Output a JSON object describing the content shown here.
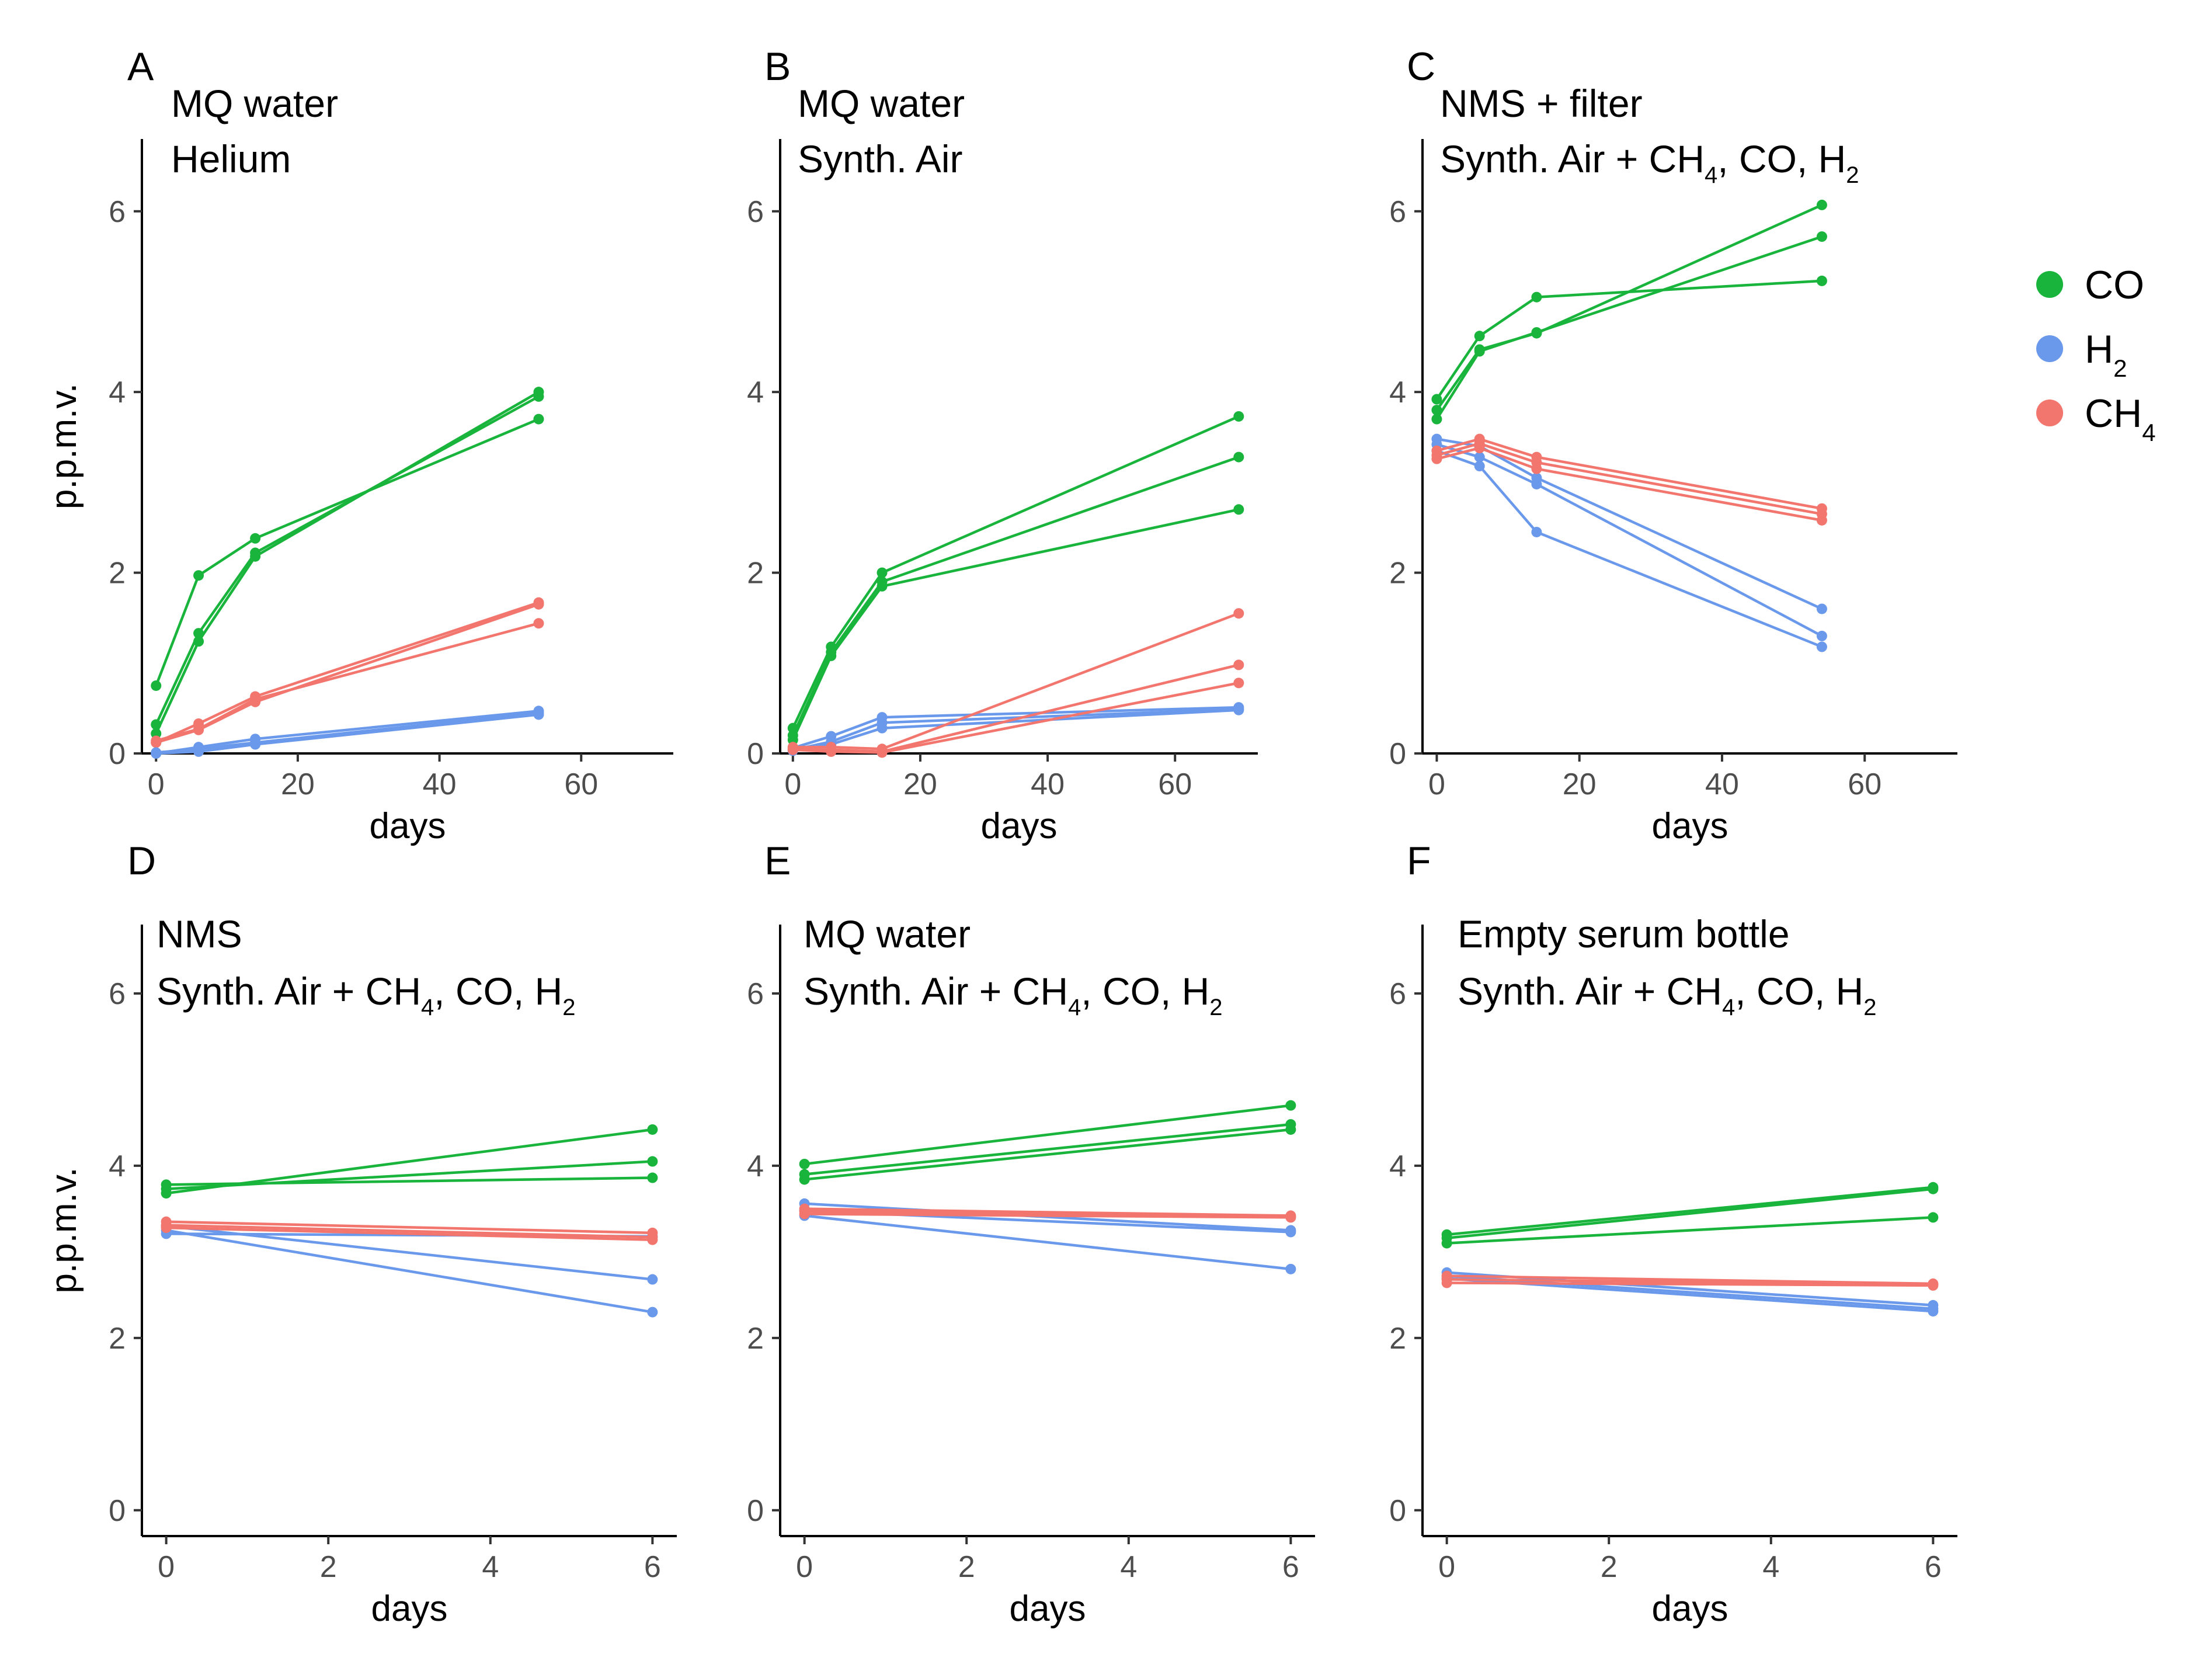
{
  "legend": {
    "items": [
      {
        "key": "CO",
        "label": "CO",
        "sub": "",
        "color": "#19b43c"
      },
      {
        "key": "H2",
        "label": "H",
        "sub": "2",
        "color": "#6a99ec"
      },
      {
        "key": "CH4",
        "label": "CH",
        "sub": "4",
        "color": "#f2756e"
      }
    ]
  },
  "chart_data": [
    {
      "type": "line",
      "panel": "A",
      "title_lines": [
        [
          {
            "t": "MQ water"
          }
        ],
        [
          {
            "t": "Helium"
          }
        ]
      ],
      "xlabel": "days",
      "ylabel": "p.p.m.v.",
      "xlim": [
        -2,
        73
      ],
      "ylim": [
        0,
        6.8
      ],
      "xticks": [
        0,
        20,
        40,
        60
      ],
      "yticks": [
        0,
        2,
        4,
        6
      ],
      "x": [
        0,
        6,
        14,
        54
      ],
      "series": [
        {
          "gas": "CO",
          "name": "CO rep 1",
          "values": [
            0.75,
            1.97,
            2.38,
            3.7
          ]
        },
        {
          "gas": "CO",
          "name": "CO rep 2",
          "values": [
            0.32,
            1.33,
            2.22,
            3.95
          ]
        },
        {
          "gas": "CO",
          "name": "CO rep 3",
          "values": [
            0.22,
            1.24,
            2.18,
            4.0
          ]
        },
        {
          "gas": "CH4",
          "name": "CH4 rep 1",
          "values": [
            0.12,
            0.33,
            0.63,
            1.67
          ]
        },
        {
          "gas": "CH4",
          "name": "CH4 rep 2",
          "values": [
            0.12,
            0.26,
            0.57,
            1.65
          ]
        },
        {
          "gas": "CH4",
          "name": "CH4 rep 3",
          "values": [
            0.14,
            0.27,
            0.6,
            1.44
          ]
        },
        {
          "gas": "H2",
          "name": "H2 rep 1",
          "values": [
            0.0,
            0.07,
            0.16,
            0.47
          ]
        },
        {
          "gas": "H2",
          "name": "H2 rep 2",
          "values": [
            0.01,
            0.05,
            0.12,
            0.45
          ]
        },
        {
          "gas": "H2",
          "name": "H2 rep 3",
          "values": [
            0.0,
            0.02,
            0.1,
            0.43
          ]
        }
      ]
    },
    {
      "type": "line",
      "panel": "B",
      "title_lines": [
        [
          {
            "t": "MQ water"
          }
        ],
        [
          {
            "t": "Synth. Air"
          }
        ]
      ],
      "xlabel": "days",
      "ylabel": "",
      "xlim": [
        -2,
        73
      ],
      "ylim": [
        0,
        6.8
      ],
      "xticks": [
        0,
        20,
        40,
        60
      ],
      "yticks": [
        0,
        2,
        4,
        6
      ],
      "x": [
        0,
        6,
        14,
        70
      ],
      "series": [
        {
          "gas": "CO",
          "name": "CO rep 1",
          "values": [
            0.28,
            1.18,
            2.0,
            3.73
          ]
        },
        {
          "gas": "CO",
          "name": "CO rep 2",
          "values": [
            0.2,
            1.12,
            1.9,
            3.28
          ]
        },
        {
          "gas": "CO",
          "name": "CO rep 3",
          "values": [
            0.15,
            1.08,
            1.85,
            2.7
          ]
        },
        {
          "gas": "H2",
          "name": "H2 rep 1",
          "values": [
            0.06,
            0.19,
            0.4,
            0.51
          ]
        },
        {
          "gas": "H2",
          "name": "H2 rep 2",
          "values": [
            0.04,
            0.13,
            0.34,
            0.49
          ]
        },
        {
          "gas": "H2",
          "name": "H2 rep 3",
          "values": [
            0.03,
            0.1,
            0.28,
            0.48
          ]
        },
        {
          "gas": "CH4",
          "name": "CH4 rep 1",
          "values": [
            0.07,
            0.07,
            0.05,
            1.55
          ]
        },
        {
          "gas": "CH4",
          "name": "CH4 rep 2",
          "values": [
            0.05,
            0.04,
            0.02,
            0.98
          ]
        },
        {
          "gas": "CH4",
          "name": "CH4 rep 3",
          "values": [
            0.04,
            0.02,
            0.01,
            0.78
          ]
        }
      ]
    },
    {
      "type": "line",
      "panel": "C",
      "title_lines": [
        [
          {
            "t": "NMS + filter"
          }
        ],
        [
          {
            "t": "Synth. Air + CH"
          },
          {
            "t": "4",
            "sub": true
          },
          {
            "t": ", CO, H"
          },
          {
            "t": "2",
            "sub": true
          }
        ]
      ],
      "xlabel": "days",
      "ylabel": "",
      "xlim": [
        -2,
        73
      ],
      "ylim": [
        0,
        6.8
      ],
      "xticks": [
        0,
        20,
        40,
        60
      ],
      "yticks": [
        0,
        2,
        4,
        6
      ],
      "x": [
        0,
        6,
        14,
        54
      ],
      "series": [
        {
          "gas": "CO",
          "name": "CO rep 1",
          "values": [
            3.92,
            4.62,
            5.05,
            5.23
          ]
        },
        {
          "gas": "CO",
          "name": "CO rep 2",
          "values": [
            3.8,
            4.47,
            4.65,
            6.07
          ]
        },
        {
          "gas": "CO",
          "name": "CO rep 3",
          "values": [
            3.7,
            4.45,
            4.66,
            5.72
          ]
        },
        {
          "gas": "H2",
          "name": "H2 rep 1",
          "values": [
            3.48,
            3.4,
            3.05,
            1.6
          ]
        },
        {
          "gas": "H2",
          "name": "H2 rep 2",
          "values": [
            3.42,
            3.28,
            2.98,
            1.3
          ]
        },
        {
          "gas": "H2",
          "name": "H2 rep 3",
          "values": [
            3.35,
            3.18,
            2.45,
            1.18
          ]
        },
        {
          "gas": "CH4",
          "name": "CH4 rep 1",
          "values": [
            3.35,
            3.48,
            3.28,
            2.71
          ]
        },
        {
          "gas": "CH4",
          "name": "CH4 rep 2",
          "values": [
            3.3,
            3.43,
            3.22,
            2.65
          ]
        },
        {
          "gas": "CH4",
          "name": "CH4 rep 3",
          "values": [
            3.26,
            3.38,
            3.15,
            2.58
          ]
        }
      ]
    },
    {
      "type": "line",
      "panel": "D",
      "title_lines": [
        [
          {
            "t": "NMS"
          }
        ],
        [
          {
            "t": "Synth. Air + CH"
          },
          {
            "t": "4",
            "sub": true
          },
          {
            "t": ", CO, H"
          },
          {
            "t": "2",
            "sub": true
          }
        ]
      ],
      "xlabel": "days",
      "ylabel": "p.p.m.v.",
      "xlim": [
        -0.3,
        6.3
      ],
      "ylim": [
        -0.3,
        6.8
      ],
      "xticks": [
        0,
        2,
        4,
        6
      ],
      "yticks": [
        0,
        2,
        4,
        6
      ],
      "x": [
        0,
        6
      ],
      "series": [
        {
          "gas": "CO",
          "name": "CO rep 1",
          "values": [
            3.78,
            3.86
          ]
        },
        {
          "gas": "CO",
          "name": "CO rep 2",
          "values": [
            3.73,
            4.05
          ]
        },
        {
          "gas": "CO",
          "name": "CO rep 3",
          "values": [
            3.68,
            4.42
          ]
        },
        {
          "gas": "H2",
          "name": "H2 rep 1",
          "values": [
            3.3,
            2.68
          ]
        },
        {
          "gas": "H2",
          "name": "H2 rep 2",
          "values": [
            3.25,
            2.3
          ]
        },
        {
          "gas": "H2",
          "name": "H2 rep 3",
          "values": [
            3.21,
            3.18
          ]
        },
        {
          "gas": "CH4",
          "name": "CH4 rep 1",
          "values": [
            3.35,
            3.22
          ]
        },
        {
          "gas": "CH4",
          "name": "CH4 rep 2",
          "values": [
            3.31,
            3.17
          ]
        },
        {
          "gas": "CH4",
          "name": "CH4 rep 3",
          "values": [
            3.28,
            3.14
          ]
        }
      ]
    },
    {
      "type": "line",
      "panel": "E",
      "title_lines": [
        [
          {
            "t": "MQ water"
          }
        ],
        [
          {
            "t": "Synth. Air + CH"
          },
          {
            "t": "4",
            "sub": true
          },
          {
            "t": ", CO, H"
          },
          {
            "t": "2",
            "sub": true
          }
        ]
      ],
      "xlabel": "days",
      "ylabel": "",
      "xlim": [
        -0.3,
        6.3
      ],
      "ylim": [
        -0.3,
        6.8
      ],
      "xticks": [
        0,
        2,
        4,
        6
      ],
      "yticks": [
        0,
        2,
        4,
        6
      ],
      "x": [
        0,
        6
      ],
      "series": [
        {
          "gas": "CO",
          "name": "CO rep 1",
          "values": [
            4.02,
            4.7
          ]
        },
        {
          "gas": "CO",
          "name": "CO rep 2",
          "values": [
            3.9,
            4.48
          ]
        },
        {
          "gas": "CO",
          "name": "CO rep 3",
          "values": [
            3.84,
            4.42
          ]
        },
        {
          "gas": "H2",
          "name": "H2 rep 1",
          "values": [
            3.56,
            3.25
          ]
        },
        {
          "gas": "H2",
          "name": "H2 rep 2",
          "values": [
            3.48,
            3.23
          ]
        },
        {
          "gas": "H2",
          "name": "H2 rep 3",
          "values": [
            3.42,
            2.8
          ]
        },
        {
          "gas": "CH4",
          "name": "CH4 rep 1",
          "values": [
            3.5,
            3.42
          ]
        },
        {
          "gas": "CH4",
          "name": "CH4 rep 2",
          "values": [
            3.47,
            3.41
          ]
        },
        {
          "gas": "CH4",
          "name": "CH4 rep 3",
          "values": [
            3.44,
            3.4
          ]
        }
      ]
    },
    {
      "type": "line",
      "panel": "F",
      "title_lines": [
        [
          {
            "t": "Empty serum bottle"
          }
        ],
        [
          {
            "t": "Synth. Air + CH"
          },
          {
            "t": "4",
            "sub": true
          },
          {
            "t": ", CO, H"
          },
          {
            "t": "2",
            "sub": true
          }
        ]
      ],
      "xlabel": "days",
      "ylabel": "",
      "xlim": [
        -0.3,
        6.3
      ],
      "ylim": [
        -0.3,
        6.8
      ],
      "xticks": [
        0,
        2,
        4,
        6
      ],
      "yticks": [
        0,
        2,
        4,
        6
      ],
      "x": [
        0,
        6
      ],
      "series": [
        {
          "gas": "CO",
          "name": "CO rep 1",
          "values": [
            3.2,
            3.75
          ]
        },
        {
          "gas": "CO",
          "name": "CO rep 2",
          "values": [
            3.16,
            3.73
          ]
        },
        {
          "gas": "CO",
          "name": "CO rep 3",
          "values": [
            3.1,
            3.4
          ]
        },
        {
          "gas": "H2",
          "name": "H2 rep 1",
          "values": [
            2.76,
            2.38
          ]
        },
        {
          "gas": "H2",
          "name": "H2 rep 2",
          "values": [
            2.72,
            2.34
          ]
        },
        {
          "gas": "H2",
          "name": "H2 rep 3",
          "values": [
            2.69,
            2.31
          ]
        },
        {
          "gas": "CH4",
          "name": "CH4 rep 1",
          "values": [
            2.72,
            2.63
          ]
        },
        {
          "gas": "CH4",
          "name": "CH4 rep 2",
          "values": [
            2.68,
            2.62
          ]
        },
        {
          "gas": "CH4",
          "name": "CH4 rep 3",
          "values": [
            2.64,
            2.61
          ]
        }
      ]
    }
  ]
}
